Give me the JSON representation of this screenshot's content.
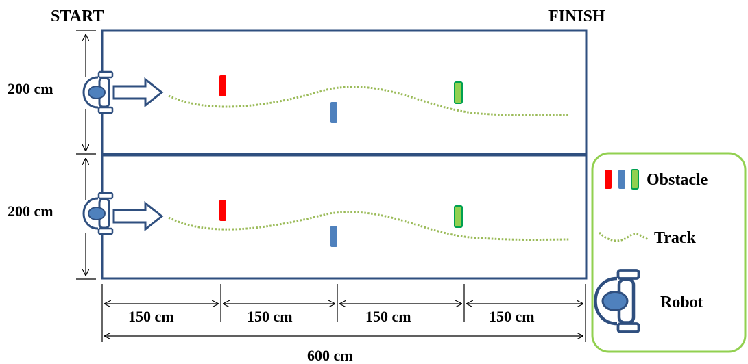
{
  "labels": {
    "start": "START",
    "finish": "FINISH",
    "height_top": "200 cm",
    "height_bottom": "200 cm",
    "seg1": "150 cm",
    "seg2": "150 cm",
    "seg3": "150 cm",
    "seg4": "150 cm",
    "total": "600 cm"
  },
  "legend": {
    "obstacle": "Obstacle",
    "track": "Track",
    "robot": "Robot"
  },
  "colors": {
    "field_border": "#2F4F7F",
    "obstacle_red": "#FF0000",
    "obstacle_blue": "#4F81BD",
    "obstacle_green": "#92D050",
    "track": "#9BBB59",
    "legend_border": "#92D050",
    "robot_body": "#4F81BD"
  }
}
